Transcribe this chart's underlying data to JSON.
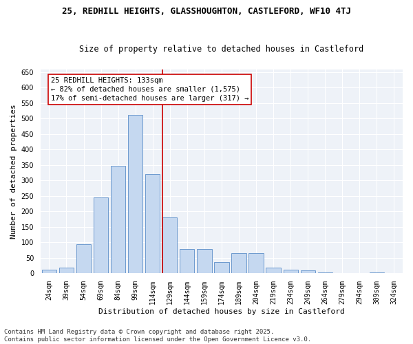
{
  "title_line1": "25, REDHILL HEIGHTS, GLASSHOUGHTON, CASTLEFORD, WF10 4TJ",
  "title_line2": "Size of property relative to detached houses in Castleford",
  "xlabel": "Distribution of detached houses by size in Castleford",
  "ylabel": "Number of detached properties",
  "categories": [
    "24sqm",
    "39sqm",
    "54sqm",
    "69sqm",
    "84sqm",
    "99sqm",
    "114sqm",
    "129sqm",
    "144sqm",
    "159sqm",
    "174sqm",
    "189sqm",
    "204sqm",
    "219sqm",
    "234sqm",
    "249sqm",
    "264sqm",
    "279sqm",
    "294sqm",
    "309sqm",
    "324sqm"
  ],
  "values": [
    10,
    18,
    93,
    245,
    348,
    512,
    320,
    180,
    78,
    78,
    35,
    65,
    65,
    18,
    12,
    8,
    3,
    0,
    0,
    2,
    0
  ],
  "bar_color": "#c5d8f0",
  "bar_edge_color": "#5b8dc8",
  "vline_color": "#cc0000",
  "annotation_title": "25 REDHILL HEIGHTS: 133sqm",
  "annotation_line2": "← 82% of detached houses are smaller (1,575)",
  "annotation_line3": "17% of semi-detached houses are larger (317) →",
  "annotation_box_color": "#cc0000",
  "ylim": [
    0,
    660
  ],
  "yticks": [
    0,
    50,
    100,
    150,
    200,
    250,
    300,
    350,
    400,
    450,
    500,
    550,
    600,
    650
  ],
  "footer_line1": "Contains HM Land Registry data © Crown copyright and database right 2025.",
  "footer_line2": "Contains public sector information licensed under the Open Government Licence v3.0.",
  "background_color": "#ffffff",
  "plot_background_color": "#eef2f8",
  "title_fontsize": 9,
  "subtitle_fontsize": 8.5,
  "axis_label_fontsize": 8,
  "tick_fontsize": 7,
  "footer_fontsize": 6.5,
  "annotation_fontsize": 7.5
}
